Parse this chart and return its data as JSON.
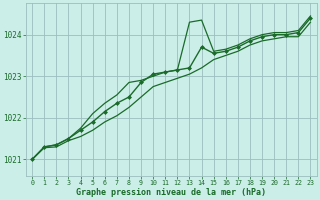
{
  "xlabel": "Graphe pression niveau de la mer (hPa)",
  "bg_color": "#cceee8",
  "grid_color": "#9bbfbf",
  "line_color": "#1a6b2a",
  "xlim": [
    -0.5,
    23.5
  ],
  "ylim": [
    1020.6,
    1024.75
  ],
  "yticks": [
    1021,
    1022,
    1023,
    1024
  ],
  "xticks": [
    0,
    1,
    2,
    3,
    4,
    5,
    6,
    7,
    8,
    9,
    10,
    11,
    12,
    13,
    14,
    15,
    16,
    17,
    18,
    19,
    20,
    21,
    22,
    23
  ],
  "hours": [
    0,
    1,
    2,
    3,
    4,
    5,
    6,
    7,
    8,
    9,
    10,
    11,
    12,
    13,
    14,
    15,
    16,
    17,
    18,
    19,
    20,
    21,
    22,
    23
  ],
  "line_main": [
    1021.0,
    1021.3,
    1021.35,
    1021.5,
    1021.7,
    1021.9,
    1022.15,
    1022.35,
    1022.5,
    1022.85,
    1023.05,
    1023.1,
    1023.15,
    1023.2,
    1023.7,
    1023.55,
    1023.6,
    1023.7,
    1023.85,
    1023.95,
    1024.0,
    1024.0,
    1024.05,
    1024.4
  ],
  "line_max": [
    1021.0,
    1021.3,
    1021.35,
    1021.5,
    1021.75,
    1022.1,
    1022.35,
    1022.55,
    1022.85,
    1022.9,
    1023.0,
    1023.1,
    1023.15,
    1024.3,
    1024.35,
    1023.6,
    1023.65,
    1023.75,
    1023.9,
    1024.0,
    1024.05,
    1024.05,
    1024.1,
    1024.45
  ],
  "line_min": [
    1021.0,
    1021.28,
    1021.3,
    1021.45,
    1021.55,
    1021.7,
    1021.9,
    1022.05,
    1022.25,
    1022.5,
    1022.75,
    1022.85,
    1022.95,
    1023.05,
    1023.2,
    1023.4,
    1023.5,
    1023.6,
    1023.75,
    1023.85,
    1023.9,
    1023.95,
    1023.95,
    1024.3
  ],
  "figwidth": 3.2,
  "figheight": 2.0,
  "dpi": 100
}
